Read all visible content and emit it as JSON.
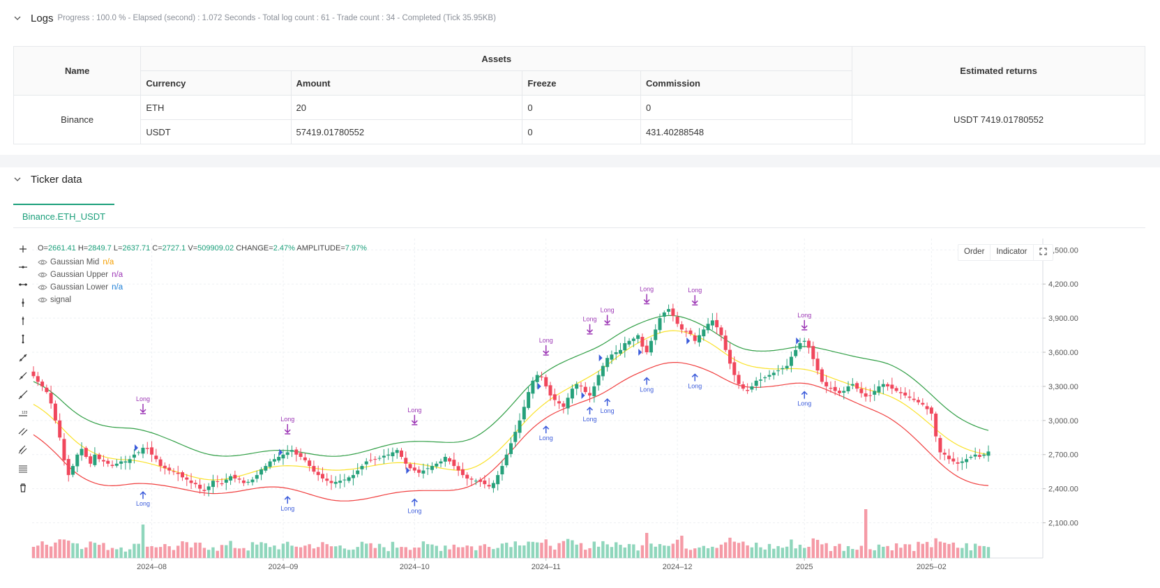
{
  "logs": {
    "title": "Logs",
    "summary": "Progress : 100.0 % - Elapsed (second) : 1.072  Seconds - Total log count : 61 - Trade count : 34 - Completed (Tick 35.95KB)",
    "table": {
      "h_name": "Name",
      "h_assets": "Assets",
      "h_returns": "Estimated returns",
      "h_currency": "Currency",
      "h_amount": "Amount",
      "h_freeze": "Freeze",
      "h_commission": "Commission",
      "exchange": "Binance",
      "rows": [
        {
          "currency": "ETH",
          "amount": "20",
          "freeze": "0",
          "commission": "0"
        },
        {
          "currency": "USDT",
          "amount": "57419.01780552",
          "freeze": "0",
          "commission": "431.40288548"
        }
      ],
      "returns": "USDT 7419.01780552"
    }
  },
  "ticker": {
    "title": "Ticker data",
    "tab": "Binance.ETH_USDT",
    "ohlc": {
      "o_label": "O=",
      "o": "2661.41",
      "h_label": "H=",
      "h": "2849.7",
      "l_label": "L=",
      "l": "2637.71",
      "c_label": "C=",
      "c": "2727.1",
      "v_label": "V=",
      "v": "509909.02",
      "change_label": "CHANGE=",
      "change": "2.47%",
      "amp_label": "AMPLITUDE=",
      "amp": "7.97%"
    },
    "legend": [
      {
        "name": "Gaussian Mid",
        "value": "n/a",
        "color": "#f59f00"
      },
      {
        "name": "Gaussian Upper",
        "value": "n/a",
        "color": "#9c36b5"
      },
      {
        "name": "Gaussian Lower",
        "value": "n/a",
        "color": "#1c7ed6"
      },
      {
        "name": "signal",
        "value": "",
        "color": "#555555"
      }
    ],
    "buttons": {
      "order": "Order",
      "indicator": "Indicator"
    },
    "tools": [
      "crosshair-icon",
      "horizontal-line-icon",
      "horizontal-ray-icon",
      "vertical-line-icon",
      "vertical-segment-icon",
      "vertical-ray-icon",
      "trend-line-icon",
      "ray-icon",
      "extended-line-icon",
      "price-label-icon",
      "parallel-channel-icon",
      "pitchfork-icon",
      "fib-retracement-icon",
      "trash-icon"
    ]
  },
  "chart_data": {
    "type": "candlestick",
    "symbol": "Binance.ETH_USDT",
    "y_ticks": [
      "4,500.00",
      "4,200.00",
      "3,900.00",
      "3,600.00",
      "3,300.00",
      "3,000.00",
      "2,700.00",
      "2,400.00",
      "2,100.00"
    ],
    "y_values": [
      4500,
      4200,
      3900,
      3600,
      3300,
      3000,
      2700,
      2400,
      2100
    ],
    "ylim": [
      1950,
      4600
    ],
    "x_ticks": [
      "2024–08",
      "2024–09",
      "2024–10",
      "2024–11",
      "2024–12",
      "2025",
      "2025–02"
    ],
    "x_tick_index": [
      27,
      57,
      87,
      117,
      147,
      176,
      205
    ],
    "colors": {
      "up": "#26a17b",
      "down": "#f0475c",
      "vol_up": "#8fd6bc",
      "vol_down": "#f59aa6",
      "mid": "#fae22a",
      "upper": "#2f9e44",
      "lower": "#f03e3e",
      "long": "#9c36b5",
      "entry": "#3b5bdb"
    },
    "closes": [
      3390,
      3340,
      3300,
      3250,
      3150,
      3000,
      2850,
      2650,
      2520,
      2600,
      2700,
      2750,
      2680,
      2620,
      2700,
      2660,
      2640,
      2620,
      2600,
      2620,
      2640,
      2640,
      2660,
      2700,
      2720,
      2760,
      2750,
      2700,
      2660,
      2600,
      2580,
      2560,
      2550,
      2530,
      2500,
      2480,
      2450,
      2440,
      2400,
      2380,
      2420,
      2470,
      2460,
      2440,
      2480,
      2510,
      2490,
      2480,
      2450,
      2460,
      2480,
      2520,
      2570,
      2600,
      2640,
      2660,
      2680,
      2700,
      2720,
      2740,
      2700,
      2680,
      2650,
      2600,
      2550,
      2520,
      2490,
      2470,
      2450,
      2460,
      2470,
      2480,
      2500,
      2520,
      2560,
      2600,
      2640,
      2650,
      2660,
      2670,
      2690,
      2700,
      2720,
      2740,
      2680,
      2620,
      2580,
      2560,
      2540,
      2560,
      2580,
      2600,
      2620,
      2640,
      2680,
      2640,
      2600,
      2560,
      2520,
      2490,
      2480,
      2470,
      2460,
      2440,
      2420,
      2450,
      2520,
      2600,
      2700,
      2800,
      2900,
      3000,
      3120,
      3250,
      3350,
      3400,
      3380,
      3300,
      3220,
      3180,
      3150,
      3120,
      3200,
      3280,
      3320,
      3300,
      3250,
      3220,
      3300,
      3400,
      3480,
      3550,
      3580,
      3600,
      3620,
      3680,
      3700,
      3720,
      3750,
      3650,
      3600,
      3700,
      3800,
      3900,
      3950,
      3980,
      3920,
      3850,
      3800,
      3780,
      3760,
      3700,
      3750,
      3800,
      3850,
      3880,
      3820,
      3750,
      3620,
      3500,
      3400,
      3320,
      3280,
      3260,
      3300,
      3350,
      3360,
      3380,
      3400,
      3420,
      3440,
      3460,
      3480,
      3560,
      3620,
      3680,
      3700,
      3640,
      3540,
      3440,
      3340,
      3300,
      3280,
      3260,
      3240,
      3260,
      3300,
      3320,
      3280,
      3240,
      3210,
      3220,
      3260,
      3300,
      3320,
      3300,
      3280,
      3260,
      3240,
      3220,
      3200,
      3180,
      3160,
      3140,
      3100,
      3060,
      2860,
      2720,
      2700,
      2660,
      2640,
      2620,
      2640,
      2660,
      2680,
      2700,
      2680,
      2700,
      2727
    ]
  }
}
